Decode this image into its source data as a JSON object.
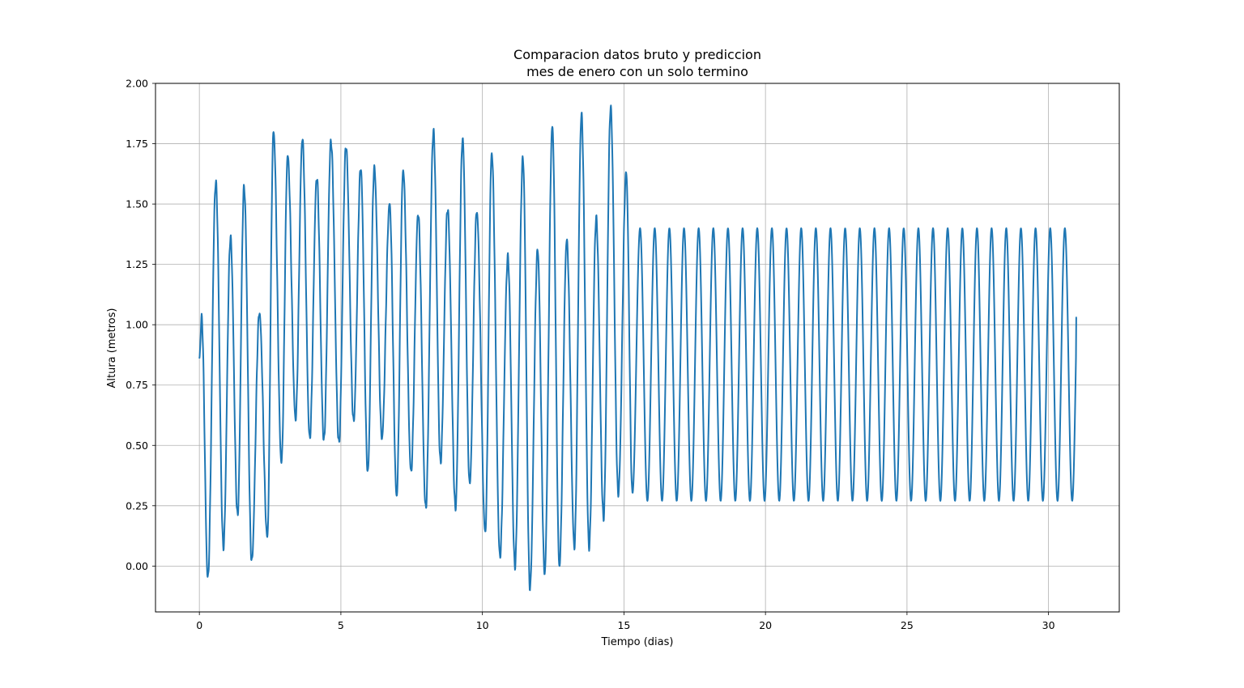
{
  "chart_data": {
    "type": "line",
    "title_lines": [
      "Comparacion datos bruto y prediccion",
      "mes de enero con un solo termino"
    ],
    "xlabel": "Tiempo (dias)",
    "ylabel": "Altura (metros)",
    "xlim": [
      -1.55,
      32.5
    ],
    "ylim": [
      -0.19,
      2.0
    ],
    "xticks": [
      0,
      5,
      10,
      15,
      20,
      25,
      30
    ],
    "yticks": [
      0.0,
      0.25,
      0.5,
      0.75,
      1.0,
      1.25,
      1.5,
      1.75,
      2.0
    ],
    "xtick_labels": [
      "0",
      "5",
      "10",
      "15",
      "20",
      "25",
      "30"
    ],
    "ytick_labels": [
      "0.00",
      "0.25",
      "0.50",
      "0.75",
      "1.00",
      "1.25",
      "1.50",
      "1.75",
      "2.00"
    ],
    "grid": true,
    "line_color": "#1f77b4",
    "series": [
      {
        "x_start": 0,
        "x_end": 31,
        "step": 0.01,
        "observed_segment": {
          "x_range": [
            0,
            15.5
          ],
          "maxima": [
            [
              0.08,
              1.03
            ],
            [
              0.58,
              1.59
            ],
            [
              1.1,
              1.36
            ],
            [
              1.58,
              1.57
            ],
            [
              2.12,
              1.05
            ],
            [
              2.62,
              1.8
            ],
            [
              3.12,
              1.7
            ],
            [
              3.64,
              1.77
            ],
            [
              4.15,
              1.61
            ],
            [
              4.65,
              1.76
            ],
            [
              5.18,
              1.74
            ],
            [
              5.7,
              1.65
            ],
            [
              6.18,
              1.65
            ],
            [
              6.72,
              1.5
            ],
            [
              7.2,
              1.64
            ],
            [
              7.73,
              1.46
            ],
            [
              8.27,
              1.8
            ],
            [
              8.77,
              1.48
            ],
            [
              9.3,
              1.77
            ],
            [
              9.8,
              1.47
            ],
            [
              10.33,
              1.71
            ],
            [
              10.9,
              1.28
            ],
            [
              11.43,
              1.69
            ],
            [
              11.95,
              1.31
            ],
            [
              12.47,
              1.82
            ],
            [
              12.98,
              1.35
            ],
            [
              13.5,
              1.87
            ],
            [
              14.02,
              1.44
            ],
            [
              14.53,
              1.9
            ],
            [
              15.08,
              1.63
            ]
          ],
          "minima": [
            [
              0.3,
              -0.05
            ],
            [
              0.85,
              0.08
            ],
            [
              1.35,
              0.21
            ],
            [
              1.85,
              0.02
            ],
            [
              2.4,
              0.12
            ],
            [
              2.9,
              0.43
            ],
            [
              3.4,
              0.61
            ],
            [
              3.9,
              0.53
            ],
            [
              4.4,
              0.52
            ],
            [
              4.93,
              0.51
            ],
            [
              5.45,
              0.6
            ],
            [
              5.95,
              0.39
            ],
            [
              6.45,
              0.53
            ],
            [
              6.97,
              0.29
            ],
            [
              7.48,
              0.39
            ],
            [
              8.0,
              0.24
            ],
            [
              8.52,
              0.43
            ],
            [
              9.05,
              0.24
            ],
            [
              9.55,
              0.34
            ],
            [
              10.1,
              0.14
            ],
            [
              10.62,
              0.04
            ],
            [
              11.15,
              0.0
            ],
            [
              11.68,
              -0.09
            ],
            [
              12.2,
              -0.03
            ],
            [
              12.72,
              0.0
            ],
            [
              13.25,
              0.08
            ],
            [
              13.77,
              0.08
            ],
            [
              14.28,
              0.2
            ],
            [
              14.8,
              0.3
            ],
            [
              15.3,
              0.3
            ]
          ]
        },
        "prediction_segment": {
          "x_range": [
            15.5,
            31
          ],
          "mean": 0.835,
          "amplitude": 0.565,
          "period_days": 0.5175,
          "peak_at": 15.57
        },
        "end_value": 1.03
      }
    ]
  }
}
